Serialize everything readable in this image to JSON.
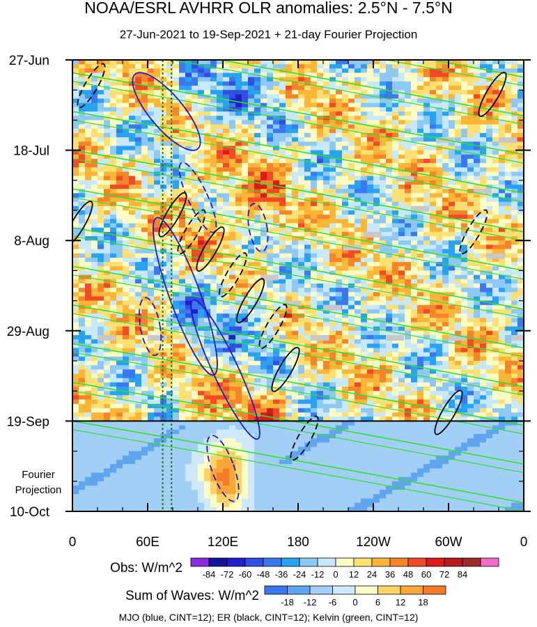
{
  "title": "NOAA/ESRL AVHRR OLR anomalies: 2.5°N - 7.5°N",
  "subtitle": "27-Jun-2021 to 19-Sep-2021 + 21-day Fourier Projection",
  "chart_data": {
    "type": "heatmap",
    "x_tick_labels": [
      "0",
      "60E",
      "120E",
      "180",
      "120W",
      "60W",
      "0"
    ],
    "x_tick_values_deg_east": [
      0,
      60,
      120,
      180,
      240,
      300,
      360
    ],
    "y_tick_labels": [
      "27-Jun",
      "18-Jul",
      "8-Aug",
      "29-Aug",
      "19-Sep",
      "10-Oct"
    ],
    "y_tick_values_day": [
      0,
      21,
      42,
      63,
      84,
      105
    ],
    "observed_period_end": "19-Sep",
    "projection_label": "Fourier Projection",
    "projection_label_lines": [
      "Fourier",
      "Projection"
    ],
    "reference_longitudes_deg_east": [
      72,
      79
    ],
    "obs_legend": {
      "label": "Obs: W/m^2",
      "levels": [
        "-84",
        "-72",
        "-60",
        "-48",
        "-36",
        "-24",
        "-12",
        "0",
        "12",
        "24",
        "36",
        "48",
        "60",
        "72",
        "84"
      ],
      "colors": [
        "#8a2be2",
        "#14149a",
        "#2020c8",
        "#2f50e0",
        "#3a78ee",
        "#29a3ef",
        "#8ec9f5",
        "#c8e8fb",
        "#fffdc6",
        "#fce074",
        "#fbb638",
        "#f6852a",
        "#f04a26",
        "#dc1a1a",
        "#b71c1c",
        "#9c2a2a",
        "#f06cc8"
      ]
    },
    "waves_legend": {
      "label": "Sum of Waves: W/m^2",
      "levels": [
        "-18",
        "-12",
        "-6",
        "0",
        "6",
        "12",
        "18"
      ],
      "colors": [
        "#3a78ee",
        "#5fa5ef",
        "#a2cff5",
        "#cde9fb",
        "#fffdc6",
        "#fcd365",
        "#fba63a",
        "#f57a2a"
      ]
    },
    "contours_note": "MJO (blue, CINT=12); ER (black, CINT=12); Kelvin (green, CINT=12)",
    "contour_colors": {
      "MJO": "#1a1ad0",
      "ER": "#000000",
      "Kelvin": "#2ee02e",
      "missing": "#c8c8c8"
    },
    "grid": false
  }
}
